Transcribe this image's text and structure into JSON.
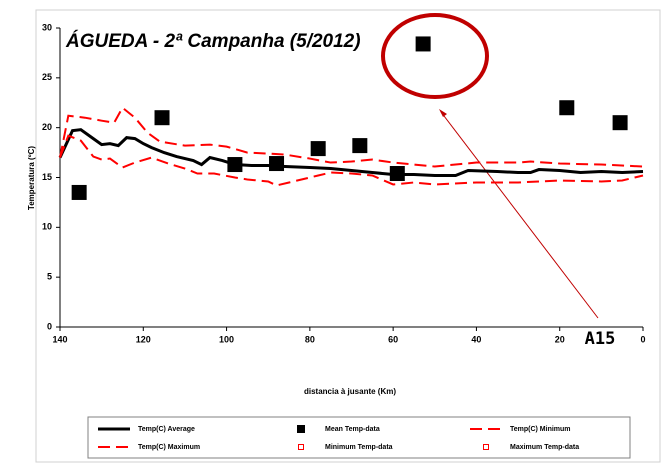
{
  "chart_data": {
    "type": "line",
    "title": "ÁGUEDA - 2ª Campanha (5/2012)",
    "x_label": "distancia à jusante (Km)",
    "y_label": "Temperatura (ºC)",
    "annotation": "A15",
    "xlim": [
      140,
      0
    ],
    "xticks": [
      140,
      120,
      100,
      80,
      60,
      40,
      20,
      0
    ],
    "ylim": [
      0,
      30
    ],
    "yticks": [
      0,
      5,
      10,
      15,
      20,
      25,
      30
    ],
    "grid": false,
    "legend": "bottom",
    "series": [
      {
        "name": "Temp(C) Average",
        "type": "line",
        "color": "#000000",
        "dash": false,
        "x": [
          140,
          137,
          135,
          132,
          130,
          128,
          126,
          124,
          122,
          120,
          118,
          115,
          112,
          108,
          106,
          104,
          101,
          98,
          94,
          90,
          86,
          80,
          75,
          70,
          65,
          60,
          55,
          50,
          45,
          42,
          35,
          30,
          27,
          25,
          20,
          15,
          10,
          5,
          0
        ],
        "values": [
          17,
          19.7,
          19.8,
          18.9,
          18.3,
          18.4,
          18.2,
          19,
          18.9,
          18.4,
          18,
          17.5,
          17.1,
          16.7,
          16.3,
          17,
          16.7,
          16.3,
          16.2,
          16.2,
          16.1,
          16,
          15.9,
          15.7,
          15.5,
          15.3,
          15.3,
          15.2,
          15.2,
          15.7,
          15.6,
          15.5,
          15.5,
          15.8,
          15.7,
          15.5,
          15.6,
          15.5,
          15.6
        ]
      },
      {
        "name": "Mean Temp-data",
        "type": "scatter",
        "color": "#000000",
        "marker": "filled",
        "x": [
          135.4,
          115.5,
          98,
          88,
          78,
          68,
          59,
          52.8,
          18.3,
          5.5
        ],
        "values": [
          13.5,
          21,
          16.3,
          16.4,
          17.9,
          18.2,
          15.4,
          28.4,
          22,
          20.5
        ]
      },
      {
        "name": "Temp(C) Minimum",
        "type": "line",
        "color": "#ff0000",
        "dash": true,
        "x": [
          140,
          138,
          135,
          132,
          130,
          128,
          125,
          122,
          118,
          114,
          110,
          107,
          103,
          98,
          95,
          90,
          88,
          85,
          82,
          78,
          75,
          70,
          65,
          60,
          55,
          50,
          40,
          30,
          25,
          20,
          10,
          5,
          0
        ],
        "values": [
          17,
          19.2,
          18.7,
          17.1,
          16.8,
          16.9,
          16,
          16.5,
          17,
          16.4,
          15.9,
          15.4,
          15.4,
          15,
          14.8,
          14.6,
          14.2,
          14.5,
          14.8,
          15.2,
          15.5,
          15.4,
          15.2,
          14.3,
          14.5,
          14.3,
          14.5,
          14.5,
          14.6,
          14.7,
          14.6,
          14.7,
          15.2
        ]
      },
      {
        "name": "Temp(C) Maximum",
        "type": "line",
        "color": "#ff0000",
        "dash": true,
        "x": [
          140,
          138,
          134,
          130,
          127,
          125,
          122,
          119,
          116,
          110,
          104,
          100,
          95,
          90,
          86,
          80,
          75,
          70,
          65,
          60,
          50,
          45,
          40,
          30,
          27,
          20,
          10,
          0
        ],
        "values": [
          17,
          21.2,
          21,
          20.7,
          20.5,
          22,
          21,
          19.5,
          18.6,
          18.2,
          18.3,
          18.1,
          17.5,
          17.4,
          17.3,
          16.9,
          16.5,
          16.6,
          16.8,
          16.5,
          16.1,
          16.3,
          16.5,
          16.5,
          16.6,
          16.4,
          16.3,
          16.1
        ]
      },
      {
        "name": "Minimum Temp-data",
        "type": "scatter",
        "color": "#ff0000",
        "marker": "hollow",
        "x": [],
        "values": []
      },
      {
        "name": "Maximum Temp-data",
        "type": "scatter",
        "color": "#ff0000",
        "marker": "hollow",
        "x": [],
        "values": []
      }
    ]
  }
}
